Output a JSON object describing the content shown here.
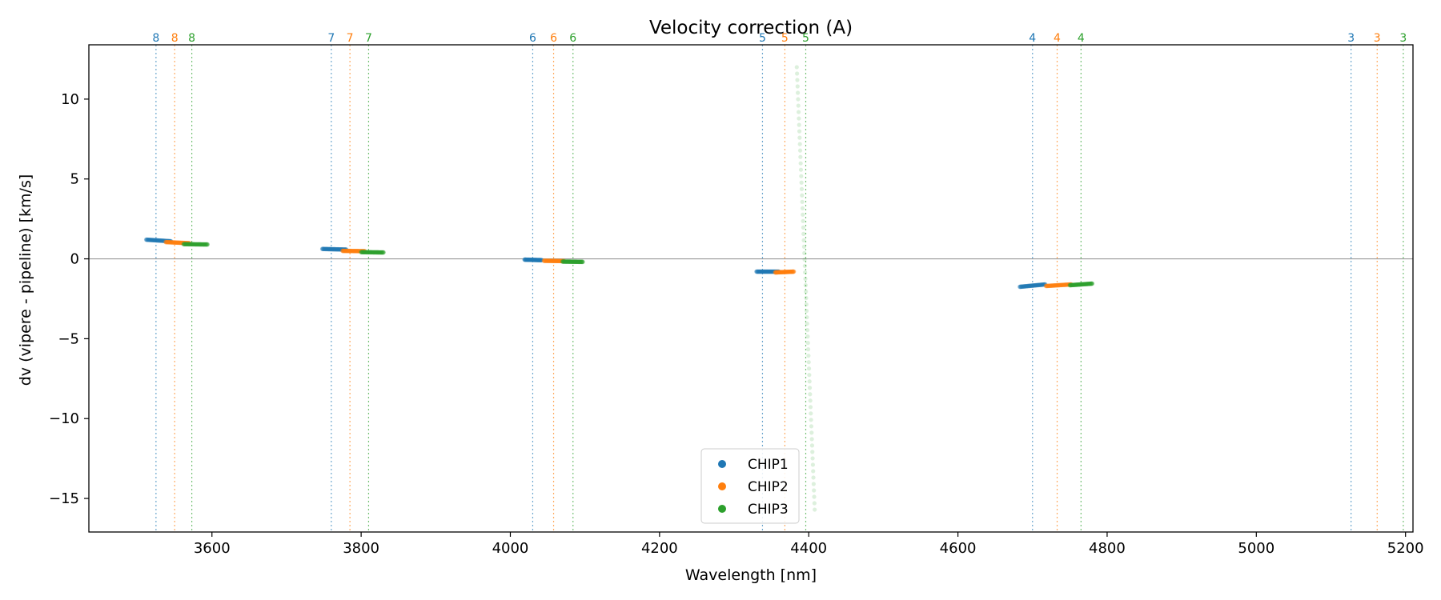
{
  "chart_data": {
    "type": "scatter",
    "title": "Velocity correction (A)",
    "xlabel": "Wavelength [nm]",
    "ylabel": "dv (vipere - pipeline) [km/s]",
    "xlim": [
      3435,
      5210
    ],
    "ylim": [
      -17.1,
      13.4
    ],
    "xticks": [
      3600,
      3800,
      4000,
      4200,
      4400,
      4600,
      4800,
      5000,
      5200
    ],
    "yticks": [
      10,
      5,
      0,
      -5,
      -10,
      -15
    ],
    "ytick_labels": [
      "10",
      "5",
      "0",
      "−10",
      "−15"
    ],
    "ytick_labels_full": [
      "10",
      "5",
      "0",
      "−5",
      "−10",
      "−15"
    ],
    "zero_line": 0,
    "grid": false,
    "legend_position": "bottom-center",
    "colors": {
      "CHIP1": "#1f77b4",
      "CHIP2": "#ff7f0e",
      "CHIP3": "#2ca02c"
    },
    "series": [
      {
        "name": "CHIP1",
        "segments": [
          {
            "order": "8",
            "x": [
              3512,
              3545
            ],
            "y": [
              1.2,
              1.1
            ]
          },
          {
            "order": "7",
            "x": [
              3748,
              3780
            ],
            "y": [
              0.62,
              0.58
            ]
          },
          {
            "order": "6",
            "x": [
              4019,
              4042
            ],
            "y": [
              -0.05,
              -0.08
            ]
          },
          {
            "order": "5",
            "x": [
              4330,
              4360
            ],
            "y": [
              -0.8,
              -0.8
            ]
          },
          {
            "order": "4",
            "x": [
              4683,
              4717
            ],
            "y": [
              -1.75,
              -1.6
            ]
          }
        ]
      },
      {
        "name": "CHIP2",
        "segments": [
          {
            "order": "8",
            "x": [
              3538,
              3570
            ],
            "y": [
              1.05,
              0.98
            ]
          },
          {
            "order": "7",
            "x": [
              3775,
              3805
            ],
            "y": [
              0.5,
              0.48
            ]
          },
          {
            "order": "6",
            "x": [
              4045,
              4072
            ],
            "y": [
              -0.12,
              -0.14
            ]
          },
          {
            "order": "5",
            "x": [
              4355,
              4380
            ],
            "y": [
              -0.85,
              -0.8
            ]
          },
          {
            "order": "4",
            "x": [
              4718,
              4752
            ],
            "y": [
              -1.7,
              -1.6
            ]
          }
        ]
      },
      {
        "name": "CHIP3",
        "segments": [
          {
            "order": "8",
            "x": [
              3562,
              3594
            ],
            "y": [
              0.92,
              0.9
            ]
          },
          {
            "order": "7",
            "x": [
              3800,
              3830
            ],
            "y": [
              0.42,
              0.4
            ]
          },
          {
            "order": "6",
            "x": [
              4070,
              4097
            ],
            "y": [
              -0.17,
              -0.19
            ]
          },
          {
            "order": "5",
            "x": [
              4384,
              4408
            ],
            "y": [
              12.0,
              -15.7
            ],
            "faint": true
          },
          {
            "order": "4",
            "x": [
              4750,
              4780
            ],
            "y": [
              -1.65,
              -1.55
            ]
          }
        ]
      }
    ],
    "order_lines": [
      {
        "label": "8",
        "chip": "CHIP1",
        "x": 3525
      },
      {
        "label": "8",
        "chip": "CHIP2",
        "x": 3550
      },
      {
        "label": "8",
        "chip": "CHIP3",
        "x": 3573
      },
      {
        "label": "7",
        "chip": "CHIP1",
        "x": 3760
      },
      {
        "label": "7",
        "chip": "CHIP2",
        "x": 3785
      },
      {
        "label": "7",
        "chip": "CHIP3",
        "x": 3810
      },
      {
        "label": "6",
        "chip": "CHIP1",
        "x": 4030
      },
      {
        "label": "6",
        "chip": "CHIP2",
        "x": 4058
      },
      {
        "label": "6",
        "chip": "CHIP3",
        "x": 4084
      },
      {
        "label": "5",
        "chip": "CHIP1",
        "x": 4338
      },
      {
        "label": "5",
        "chip": "CHIP2",
        "x": 4368
      },
      {
        "label": "5",
        "chip": "CHIP3",
        "x": 4396
      },
      {
        "label": "4",
        "chip": "CHIP1",
        "x": 4700
      },
      {
        "label": "4",
        "chip": "CHIP2",
        "x": 4733
      },
      {
        "label": "4",
        "chip": "CHIP3",
        "x": 4765
      },
      {
        "label": "3",
        "chip": "CHIP1",
        "x": 5127
      },
      {
        "label": "3",
        "chip": "CHIP2",
        "x": 5162
      },
      {
        "label": "3",
        "chip": "CHIP3",
        "x": 5197
      }
    ]
  }
}
